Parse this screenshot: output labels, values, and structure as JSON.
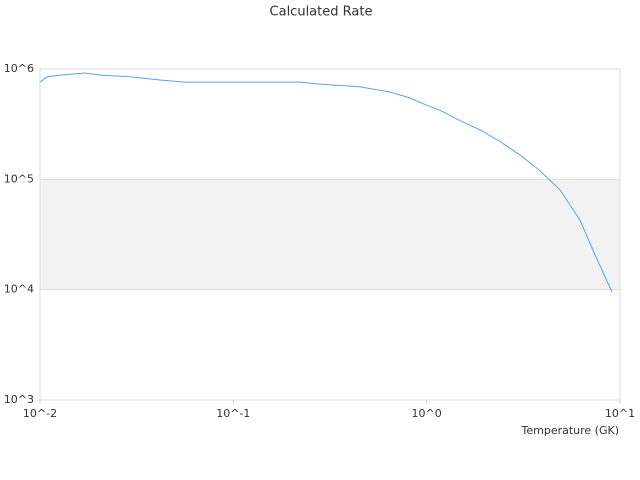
{
  "chart_data": {
    "type": "line",
    "title": "Calculated Rate",
    "x_label": "Temperature (GK)",
    "xscale": "log",
    "yscale": "log",
    "grid": true,
    "xlim": [
      0.01,
      10
    ],
    "ylim": [
      1000,
      1000000
    ],
    "xticks": [
      {
        "value": 0.01,
        "label": "10^-2"
      },
      {
        "value": 0.1,
        "label": "10^-1"
      },
      {
        "value": 1,
        "label": "10^0"
      },
      {
        "value": 10,
        "label": "10^1"
      }
    ],
    "yticks": [
      {
        "value": 1000,
        "label": "10^3"
      },
      {
        "value": 10000,
        "label": "10^4"
      },
      {
        "value": 100000,
        "label": "10^5"
      },
      {
        "value": 1000000,
        "label": "10^6"
      }
    ],
    "x": [
      0.01,
      0.0109,
      0.0127,
      0.0171,
      0.0204,
      0.0292,
      0.0417,
      0.0563,
      0.0963,
      0.22,
      0.28,
      0.45,
      0.64,
      0.81,
      1.0,
      1.18,
      1.49,
      1.89,
      2.4,
      3.04,
      3.85,
      4.9,
      6.2,
      7.4,
      9.1
    ],
    "series": [
      {
        "color": "#5ba3e8",
        "values": [
          760000,
          850000,
          880000,
          920000,
          880000,
          850000,
          795000,
          760000,
          760000,
          760000,
          730000,
          690000,
          620000,
          550000,
          470000,
          420000,
          340000,
          280000,
          220000,
          166000,
          120000,
          80000,
          43000,
          21000,
          9500
        ]
      }
    ]
  }
}
